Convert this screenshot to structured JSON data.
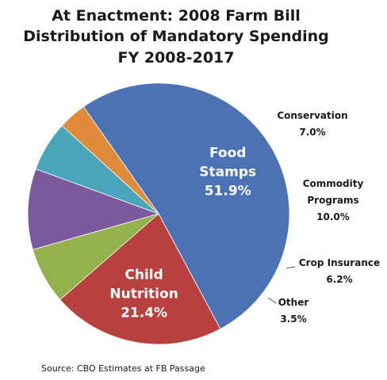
{
  "chart_data": {
    "type": "pie",
    "title": [
      "At Enactment: 2008 Farm Bill",
      "Distribution of Mandatory Spending",
      "FY 2008-2017"
    ],
    "source": "Source: CBO Estimates at FB Passage",
    "unit": "%",
    "slices": [
      {
        "label": [
          "Food",
          "Stamps"
        ],
        "value": 51.9,
        "value_text": "51.9%",
        "color": "#4a72b4"
      },
      {
        "label": [
          "Child",
          "Nutrition"
        ],
        "value": 21.4,
        "value_text": "21.4%",
        "color": "#b8413f"
      },
      {
        "label": [
          "Conservation"
        ],
        "value": 7.0,
        "value_text": "7.0%",
        "color": "#93b24e"
      },
      {
        "label": [
          "Commodity",
          "Programs"
        ],
        "value": 10.0,
        "value_text": "10.0%",
        "color": "#7a5a9c"
      },
      {
        "label": [
          "Crop Insurance"
        ],
        "value": 6.2,
        "value_text": "6.2%",
        "color": "#4aa4bc"
      },
      {
        "label": [
          "Other"
        ],
        "value": 3.5,
        "value_text": "3.5%",
        "color": "#e08b3a"
      }
    ]
  }
}
